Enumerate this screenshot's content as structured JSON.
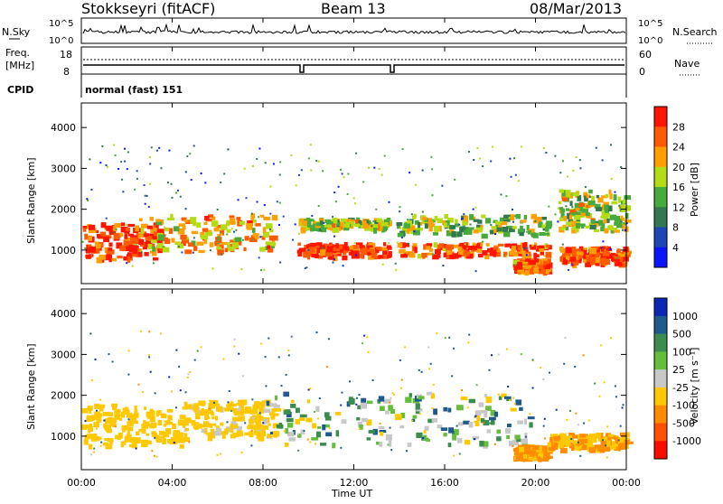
{
  "header": {
    "station": "Stokkseyri (fitACF)",
    "beam": "Beam 13",
    "date": "08/Mar/2013"
  },
  "panels": {
    "nsky": {
      "left_label": "N.Sky",
      "right_label": "N.Search",
      "ticks": [
        "10^5",
        "10^0"
      ]
    },
    "freq": {
      "left_label_1": "Freq.",
      "left_label_2": "[MHz]",
      "left_ticks": [
        "18",
        "8"
      ],
      "right_label": "Nave",
      "right_ticks": [
        "60",
        "0"
      ]
    },
    "cpid": {
      "left_label": "CPID",
      "value": "normal (fast) 151"
    }
  },
  "time_axis": {
    "label": "Time UT",
    "ticks": [
      "00:00",
      "04:00",
      "08:00",
      "12:00",
      "16:00",
      "20:00",
      "00:00"
    ]
  },
  "range_axis": {
    "label": "Slant Range [km]",
    "ticks": [
      "1000",
      "2000",
      "3000",
      "4000"
    ]
  },
  "power_scale": {
    "label": "Power [dB]",
    "ticks": [
      "4",
      "8",
      "12",
      "16",
      "20",
      "24",
      "28"
    ],
    "colors": [
      "#0a14ff",
      "#1e46b4",
      "#327850",
      "#46aa3c",
      "#b4dc14",
      "#ffa000",
      "#ff5a00",
      "#ff1400"
    ]
  },
  "velocity_scale": {
    "label": "Velocity [m s⁻¹]",
    "ticks": [
      "1000",
      "500",
      "100",
      "25",
      "-25",
      "-100",
      "-500",
      "-1000"
    ],
    "colors": [
      "#0a28b4",
      "#1e5a8c",
      "#3c8c50",
      "#64be3c",
      "#c8c8c8",
      "#ffc800",
      "#ff8c00",
      "#ff5000",
      "#ff0a00"
    ]
  },
  "chart_data": [
    {
      "type": "heatmap",
      "title": "Power",
      "xlabel": "Time UT",
      "ylabel": "Slant Range [km]",
      "xlim": [
        "00:00",
        "24:00"
      ],
      "ylim": [
        180,
        4600
      ],
      "colorbar": {
        "label": "Power [dB]",
        "range": [
          0,
          32
        ]
      },
      "echo_bands": [
        {
          "start_h": 0.0,
          "end_h": 3.5,
          "range_km": [
            800,
            1700
          ],
          "power_db": 28
        },
        {
          "start_h": 2.5,
          "end_h": 8.5,
          "range_km": [
            1000,
            1900
          ],
          "power_db": 22
        },
        {
          "start_h": 9.5,
          "end_h": 13.5,
          "range_km": [
            850,
            1200
          ],
          "power_db": 28
        },
        {
          "start_h": 9.5,
          "end_h": 13.5,
          "range_km": [
            1550,
            1800
          ],
          "power_db": 18
        },
        {
          "start_h": 13.8,
          "end_h": 20.5,
          "range_km": [
            900,
            1200
          ],
          "power_db": 26
        },
        {
          "start_h": 13.8,
          "end_h": 20.5,
          "range_km": [
            1400,
            1900
          ],
          "power_db": 16
        },
        {
          "start_h": 19.0,
          "end_h": 20.5,
          "range_km": [
            500,
            800
          ],
          "power_db": 26
        },
        {
          "start_h": 21.0,
          "end_h": 24.0,
          "range_km": [
            700,
            1100
          ],
          "power_db": 28
        },
        {
          "start_h": 21.0,
          "end_h": 24.0,
          "range_km": [
            1500,
            2500
          ],
          "power_db": 18
        }
      ]
    },
    {
      "type": "heatmap",
      "title": "Velocity",
      "xlabel": "Time UT",
      "ylabel": "Slant Range [km]",
      "xlim": [
        "00:00",
        "24:00"
      ],
      "ylim": [
        180,
        4600
      ],
      "colorbar": {
        "label": "Velocity [m s⁻¹]",
        "range": [
          -1000,
          1000
        ]
      },
      "echo_bands": [
        {
          "start_h": 0.0,
          "end_h": 4.5,
          "range_km": [
            800,
            1800
          ],
          "velocity": -300
        },
        {
          "start_h": 4.5,
          "end_h": 8.5,
          "range_km": [
            1000,
            1900
          ],
          "velocity": -200
        },
        {
          "start_h": 8.0,
          "end_h": 20.0,
          "range_km": [
            800,
            2100
          ],
          "velocity": 0
        },
        {
          "start_h": 19.0,
          "end_h": 20.5,
          "range_km": [
            500,
            800
          ],
          "velocity": -600
        },
        {
          "start_h": 20.5,
          "end_h": 24.0,
          "range_km": [
            700,
            1100
          ],
          "velocity": -500
        }
      ]
    }
  ]
}
